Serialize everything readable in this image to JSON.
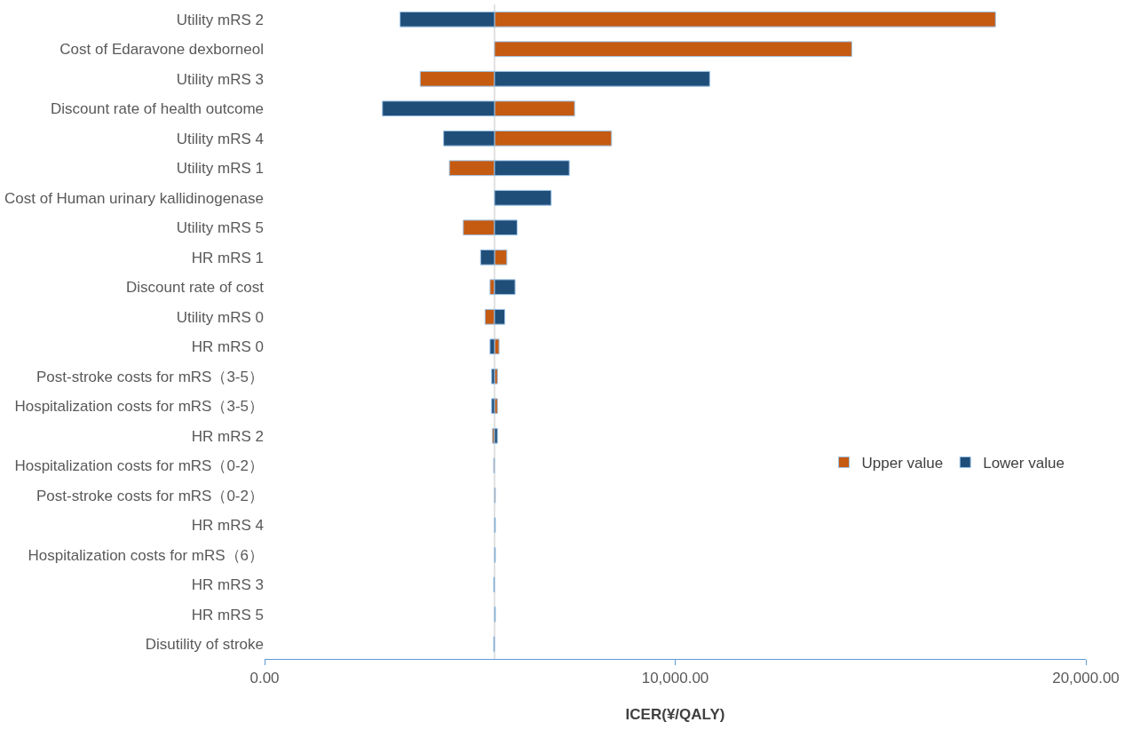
{
  "chart_data": {
    "type": "bar",
    "orientation": "horizontal",
    "xlabel": "ICER(¥/QALY)",
    "categories": [
      "Utility mRS 2",
      "Cost of Edaravone dexborneol",
      "Utility mRS 3",
      "Discount rate of health outcome",
      "Utility mRS 4",
      "Utility mRS 1",
      "Cost of Human urinary kallidinogenase",
      "Utility mRS 5",
      "HR mRS 1",
      "Discount rate of cost",
      "Utility mRS 0",
      "HR mRS 0",
      "Post-stroke costs for mRS（3-5）",
      "Hospitalization costs for mRS（3-5）",
      "HR mRS 2",
      "Hospitalization costs for mRS（0-2）",
      "Post-stroke costs for mRS（0-2）",
      "HR mRS 4",
      "Hospitalization costs for mRS（6）",
      "HR mRS 3",
      "HR mRS 5",
      "Disutility of stroke"
    ],
    "series": [
      {
        "name": "Upper value",
        "color": "#c55a11",
        "base": [
          5600,
          5600,
          5600,
          5600,
          5600,
          5600,
          null,
          5600,
          5600,
          5600,
          5600,
          5600,
          5600,
          5600,
          5600,
          5600,
          5600,
          null,
          null,
          null,
          null,
          null
        ],
        "values": [
          12200,
          8700,
          -1810,
          1950,
          2850,
          -1100,
          null,
          -760,
          300,
          -110,
          -230,
          110,
          70,
          70,
          -50,
          -20,
          20,
          null,
          null,
          null,
          null,
          null
        ]
      },
      {
        "name": "Lower value",
        "color": "#1f4e79",
        "base": [
          5600,
          null,
          5600,
          5600,
          5600,
          5600,
          5600,
          5600,
          5600,
          5600,
          5600,
          5600,
          5600,
          5600,
          5600,
          null,
          null,
          5600,
          5600,
          5600,
          5600,
          5600
        ],
        "values": [
          -2300,
          null,
          5240,
          -2730,
          -1240,
          1820,
          1380,
          550,
          -340,
          500,
          250,
          -110,
          -70,
          -70,
          70,
          null,
          null,
          20,
          20,
          -20,
          20,
          -20
        ]
      }
    ],
    "xlim": [
      0,
      20000
    ],
    "xticks": [
      {
        "value": 0,
        "label": "0.00"
      },
      {
        "value": 10000,
        "label": "10,000.00"
      },
      {
        "value": 20000,
        "label": "20,000.00"
      }
    ],
    "ref_lines": [
      {
        "axis": "x",
        "value": 5600,
        "label": null,
        "color": "#d9d9d9"
      }
    ],
    "grid": false,
    "legend": "right"
  }
}
